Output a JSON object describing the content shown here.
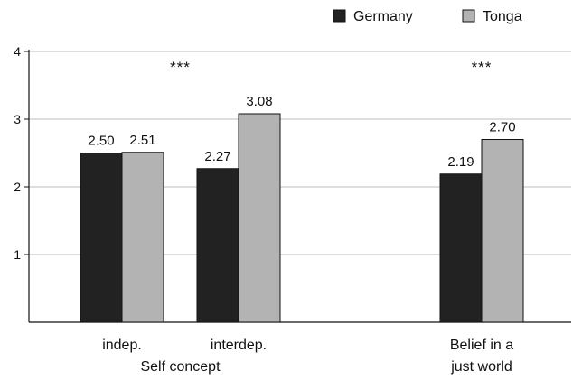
{
  "chart_data": {
    "type": "bar",
    "ylim": [
      0,
      4
    ],
    "yticks": [
      "1",
      "2",
      "3",
      "4"
    ],
    "grid": true,
    "legend_position": "top-right",
    "series": [
      {
        "name": "Germany",
        "color": "#222222"
      },
      {
        "name": "Tonga",
        "color": "#b3b3b3"
      }
    ],
    "categories": [
      {
        "label": "indep.",
        "values": [
          2.5,
          2.51
        ],
        "value_labels": [
          "2.50",
          "2.51"
        ]
      },
      {
        "label": "interdep.",
        "values": [
          2.27,
          3.08
        ],
        "value_labels": [
          "2.27",
          "3.08"
        ]
      },
      {
        "label": "Belief in a just world",
        "label_lines": [
          "Belief in a",
          "just world"
        ],
        "values": [
          2.19,
          2.7
        ],
        "value_labels": [
          "2.19",
          "2.70"
        ]
      }
    ],
    "group_labels": [
      {
        "label": "Self concept",
        "categories": [
          0,
          1
        ]
      }
    ],
    "significance": [
      {
        "text": "***",
        "categories": [
          0,
          1
        ]
      },
      {
        "text": "***",
        "categories": [
          2
        ]
      }
    ]
  }
}
